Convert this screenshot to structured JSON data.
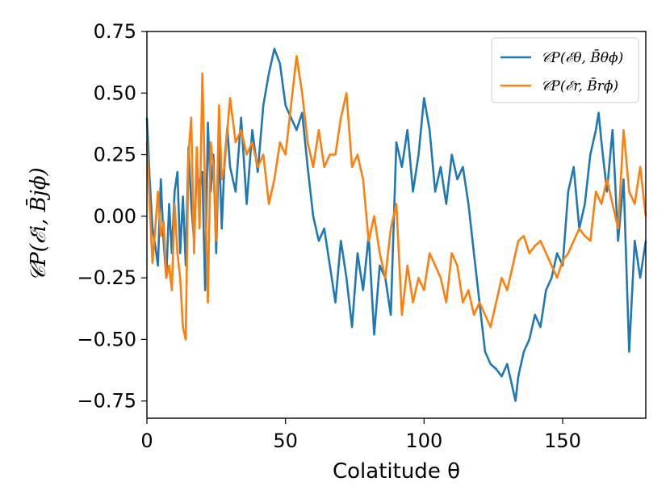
{
  "chart_data": {
    "type": "line",
    "xlabel": "Colatitude θ",
    "ylabel": "𝒞P(ℰi, B̄jϕ)",
    "xlim": [
      0,
      180
    ],
    "ylim": [
      -0.82,
      0.75
    ],
    "xticks": [
      0,
      50,
      100,
      150
    ],
    "xtick_labels": [
      "0",
      "50",
      "100",
      "150"
    ],
    "yticks": [
      0.75,
      0.5,
      0.25,
      0.0,
      -0.25,
      -0.5,
      -0.75
    ],
    "ytick_labels": [
      "0.75",
      "0.50",
      "0.25",
      "0.00",
      "−0.25",
      "−0.50",
      "−0.75"
    ],
    "grid": false,
    "legend_position": "top-right",
    "series": [
      {
        "name": "𝒞P(ℰθ, B̄θϕ)",
        "color": "#1f77b4",
        "x": [
          0,
          1,
          2,
          3,
          4,
          5,
          6,
          7,
          8,
          9,
          10,
          11,
          12,
          13,
          14,
          15,
          16,
          17,
          18,
          19,
          20,
          21,
          22,
          23,
          24,
          25,
          26,
          27,
          28,
          29,
          30,
          32,
          34,
          36,
          38,
          40,
          42,
          44,
          46,
          48,
          50,
          52,
          54,
          56,
          58,
          60,
          62,
          64,
          66,
          68,
          70,
          72,
          74,
          76,
          78,
          80,
          82,
          84,
          86,
          88,
          90,
          92,
          94,
          96,
          98,
          100,
          102,
          104,
          106,
          108,
          110,
          112,
          114,
          116,
          118,
          120,
          122,
          124,
          126,
          128,
          130,
          132,
          133,
          134,
          136,
          138,
          140,
          142,
          144,
          146,
          148,
          150,
          152,
          154,
          156,
          158,
          160,
          162,
          163,
          164,
          166,
          168,
          170,
          172,
          174,
          176,
          178,
          180
        ],
        "values": [
          0.4,
          0.15,
          -0.05,
          -0.12,
          -0.2,
          0.15,
          -0.1,
          -0.25,
          0.05,
          -0.15,
          0.1,
          0.18,
          -0.15,
          0.08,
          -0.2,
          0.28,
          0.05,
          -0.1,
          0.2,
          0.1,
          0.18,
          -0.3,
          0.38,
          0.1,
          0.25,
          -0.15,
          0.3,
          -0.05,
          0.22,
          0.36,
          0.2,
          0.1,
          0.4,
          0.05,
          0.35,
          0.18,
          0.45,
          0.58,
          0.68,
          0.62,
          0.45,
          0.4,
          0.35,
          0.42,
          0.2,
          0.0,
          -0.1,
          -0.05,
          -0.2,
          -0.35,
          -0.1,
          -0.25,
          -0.45,
          -0.15,
          -0.3,
          -0.08,
          -0.48,
          -0.2,
          -0.25,
          -0.4,
          0.3,
          0.2,
          0.35,
          0.1,
          0.25,
          0.48,
          0.35,
          0.1,
          0.2,
          0.05,
          0.25,
          0.15,
          0.2,
          0.05,
          -0.15,
          -0.35,
          -0.55,
          -0.6,
          -0.62,
          -0.65,
          -0.6,
          -0.7,
          -0.75,
          -0.65,
          -0.55,
          -0.5,
          -0.4,
          -0.45,
          -0.3,
          -0.25,
          -0.15,
          -0.2,
          0.1,
          0.2,
          -0.05,
          0.05,
          0.25,
          0.35,
          0.42,
          0.3,
          0.1,
          0.35,
          -0.1,
          0.15,
          -0.55,
          -0.1,
          -0.25,
          -0.1
        ]
      },
      {
        "name": "𝒞P(ℰr, B̄rϕ)",
        "color": "#ff7f0e",
        "x": [
          0,
          1,
          2,
          3,
          4,
          5,
          6,
          7,
          8,
          9,
          10,
          11,
          12,
          13,
          14,
          15,
          16,
          17,
          18,
          19,
          20,
          21,
          22,
          23,
          24,
          25,
          26,
          27,
          28,
          29,
          30,
          32,
          34,
          36,
          38,
          40,
          42,
          44,
          46,
          48,
          50,
          52,
          54,
          56,
          58,
          60,
          62,
          64,
          66,
          68,
          70,
          72,
          74,
          76,
          78,
          80,
          82,
          84,
          86,
          88,
          90,
          92,
          94,
          96,
          98,
          100,
          102,
          104,
          106,
          108,
          110,
          112,
          114,
          116,
          118,
          120,
          122,
          124,
          126,
          128,
          130,
          132,
          134,
          136,
          138,
          140,
          142,
          144,
          146,
          148,
          150,
          152,
          154,
          156,
          158,
          160,
          162,
          164,
          166,
          168,
          170,
          172,
          174,
          176,
          178,
          180
        ],
        "values": [
          0.3,
          0.05,
          -0.19,
          -0.05,
          0.1,
          -0.08,
          -0.02,
          -0.25,
          -0.2,
          -0.3,
          0.05,
          -0.15,
          -0.25,
          -0.45,
          -0.5,
          0.25,
          0.4,
          -0.15,
          0.28,
          -0.05,
          0.58,
          0.1,
          -0.35,
          0.3,
          0.2,
          -0.1,
          0.45,
          0.15,
          0.2,
          0.35,
          0.48,
          0.3,
          0.35,
          0.25,
          0.3,
          0.2,
          0.25,
          0.05,
          0.15,
          0.3,
          0.25,
          0.45,
          0.65,
          0.5,
          0.3,
          0.2,
          0.35,
          0.2,
          0.25,
          0.25,
          0.4,
          0.5,
          0.2,
          0.25,
          0.15,
          -0.1,
          0.0,
          -0.15,
          -0.25,
          -0.05,
          0.05,
          -0.4,
          -0.2,
          -0.35,
          -0.25,
          -0.3,
          -0.15,
          -0.2,
          -0.25,
          -0.35,
          -0.15,
          -0.2,
          -0.35,
          -0.3,
          -0.4,
          -0.35,
          -0.4,
          -0.45,
          -0.35,
          -0.25,
          -0.3,
          -0.2,
          -0.1,
          -0.08,
          -0.15,
          -0.12,
          -0.1,
          -0.15,
          -0.2,
          -0.25,
          -0.18,
          -0.15,
          -0.1,
          -0.05,
          -0.08,
          -0.1,
          0.1,
          0.05,
          0.15,
          0.05,
          -0.05,
          0.35,
          0.1,
          0.05,
          0.2,
          0.0
        ]
      }
    ]
  }
}
